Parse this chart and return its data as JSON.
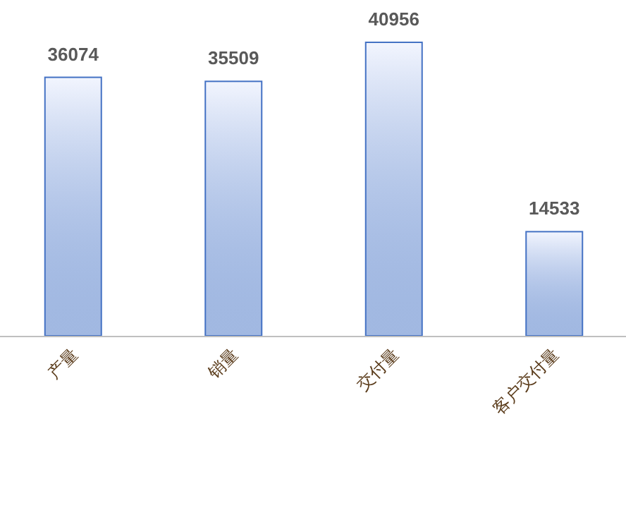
{
  "chart_data": {
    "type": "bar",
    "categories": [
      "产量",
      "销量",
      "交付量",
      "客户交付量"
    ],
    "values": [
      36074,
      35509,
      40956,
      14533
    ],
    "color": "#4472c4",
    "data_labels": true
  }
}
